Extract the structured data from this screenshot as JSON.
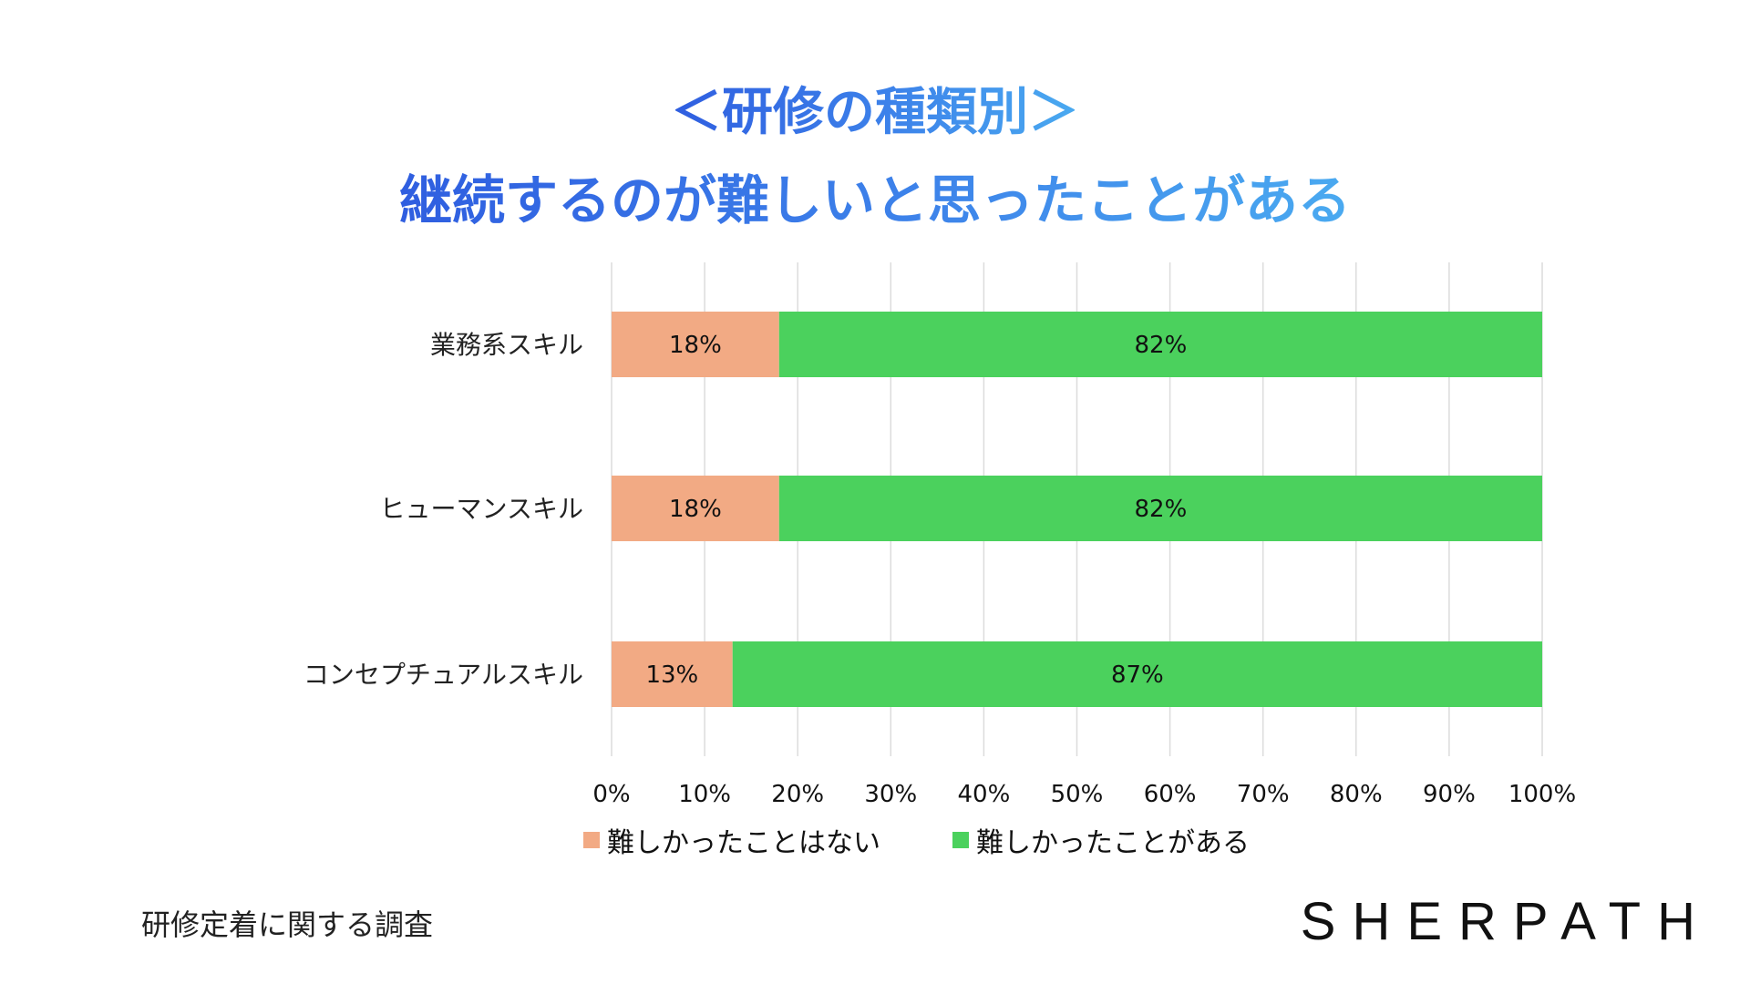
{
  "title": {
    "line1": "＜研修の種類別＞",
    "line2": "継続するのが難しいと思ったことがある"
  },
  "colors": {
    "not_difficult": "#f2aa84",
    "difficult": "#4bd15d",
    "grid": "#dcdcdc",
    "title_start": "#2f5ee0",
    "title_end": "#4aaaf0"
  },
  "chart_data": {
    "type": "bar",
    "orientation": "horizontal",
    "stacked": true,
    "categories": [
      "業務系スキル",
      "ヒューマンスキル",
      "コンセプチュアルスキル"
    ],
    "series": [
      {
        "name": "難しかったことはない",
        "values": [
          18,
          18,
          13
        ],
        "labels": [
          "18%",
          "18%",
          "13%"
        ]
      },
      {
        "name": "難しかったことがある",
        "values": [
          82,
          82,
          87
        ],
        "labels": [
          "82%",
          "82%",
          "87%"
        ]
      }
    ],
    "xlim": [
      0,
      100
    ],
    "xticks": [
      "0%",
      "10%",
      "20%",
      "30%",
      "40%",
      "50%",
      "60%",
      "70%",
      "80%",
      "90%",
      "100%"
    ],
    "grid": true,
    "legend_position": "bottom"
  },
  "footer": {
    "source": "研修定着に関する調査",
    "logo": "SHERPATH"
  }
}
